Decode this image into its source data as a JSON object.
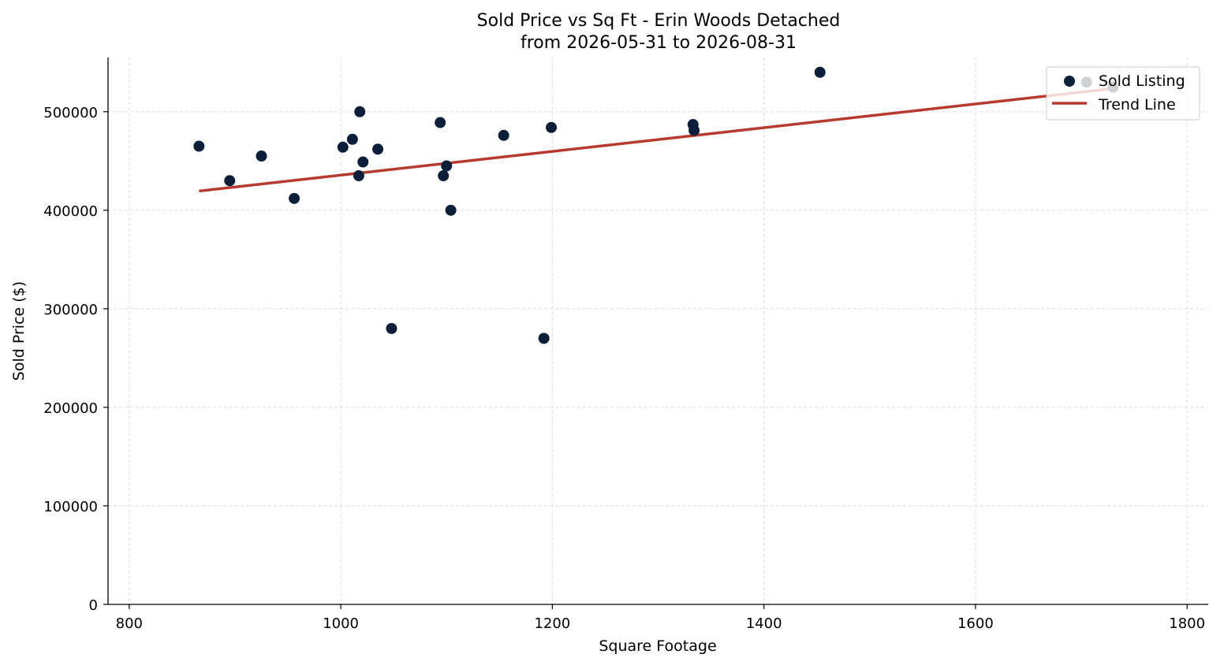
{
  "chart_data": {
    "type": "scatter",
    "title": "Sold Price vs Sq Ft - Erin Woods Detached",
    "subtitle": "from 2026-05-31 to 2026-08-31",
    "xlabel": "Square Footage",
    "ylabel": "Sold Price ($)",
    "xlim": [
      780,
      1820
    ],
    "ylim": [
      0,
      555000
    ],
    "xticks": [
      800,
      1000,
      1200,
      1400,
      1600,
      1800
    ],
    "yticks": [
      0,
      100000,
      200000,
      300000,
      400000,
      500000
    ],
    "grid": true,
    "legend_position": "top-right",
    "series": [
      {
        "name": "Sold Listing",
        "kind": "scatter",
        "color": "#0b1f3a",
        "points": [
          {
            "x": 866,
            "y": 465000
          },
          {
            "x": 895,
            "y": 430000
          },
          {
            "x": 925,
            "y": 455000
          },
          {
            "x": 956,
            "y": 412000
          },
          {
            "x": 1002,
            "y": 464000
          },
          {
            "x": 1011,
            "y": 472000
          },
          {
            "x": 1017,
            "y": 435000
          },
          {
            "x": 1018,
            "y": 500000
          },
          {
            "x": 1021,
            "y": 449000
          },
          {
            "x": 1035,
            "y": 462000
          },
          {
            "x": 1048,
            "y": 280000
          },
          {
            "x": 1094,
            "y": 489000
          },
          {
            "x": 1097,
            "y": 435000
          },
          {
            "x": 1100,
            "y": 445000
          },
          {
            "x": 1104,
            "y": 400000
          },
          {
            "x": 1154,
            "y": 476000
          },
          {
            "x": 1192,
            "y": 270000
          },
          {
            "x": 1199,
            "y": 484000
          },
          {
            "x": 1333,
            "y": 487000
          },
          {
            "x": 1334,
            "y": 481000
          },
          {
            "x": 1453,
            "y": 540000
          },
          {
            "x": 1705,
            "y": 530000
          },
          {
            "x": 1730,
            "y": 525000
          }
        ]
      },
      {
        "name": "Trend Line",
        "kind": "line",
        "color": "#b83a2e",
        "points": [
          {
            "x": 866,
            "y": 419500
          },
          {
            "x": 1730,
            "y": 523500
          }
        ]
      }
    ]
  }
}
